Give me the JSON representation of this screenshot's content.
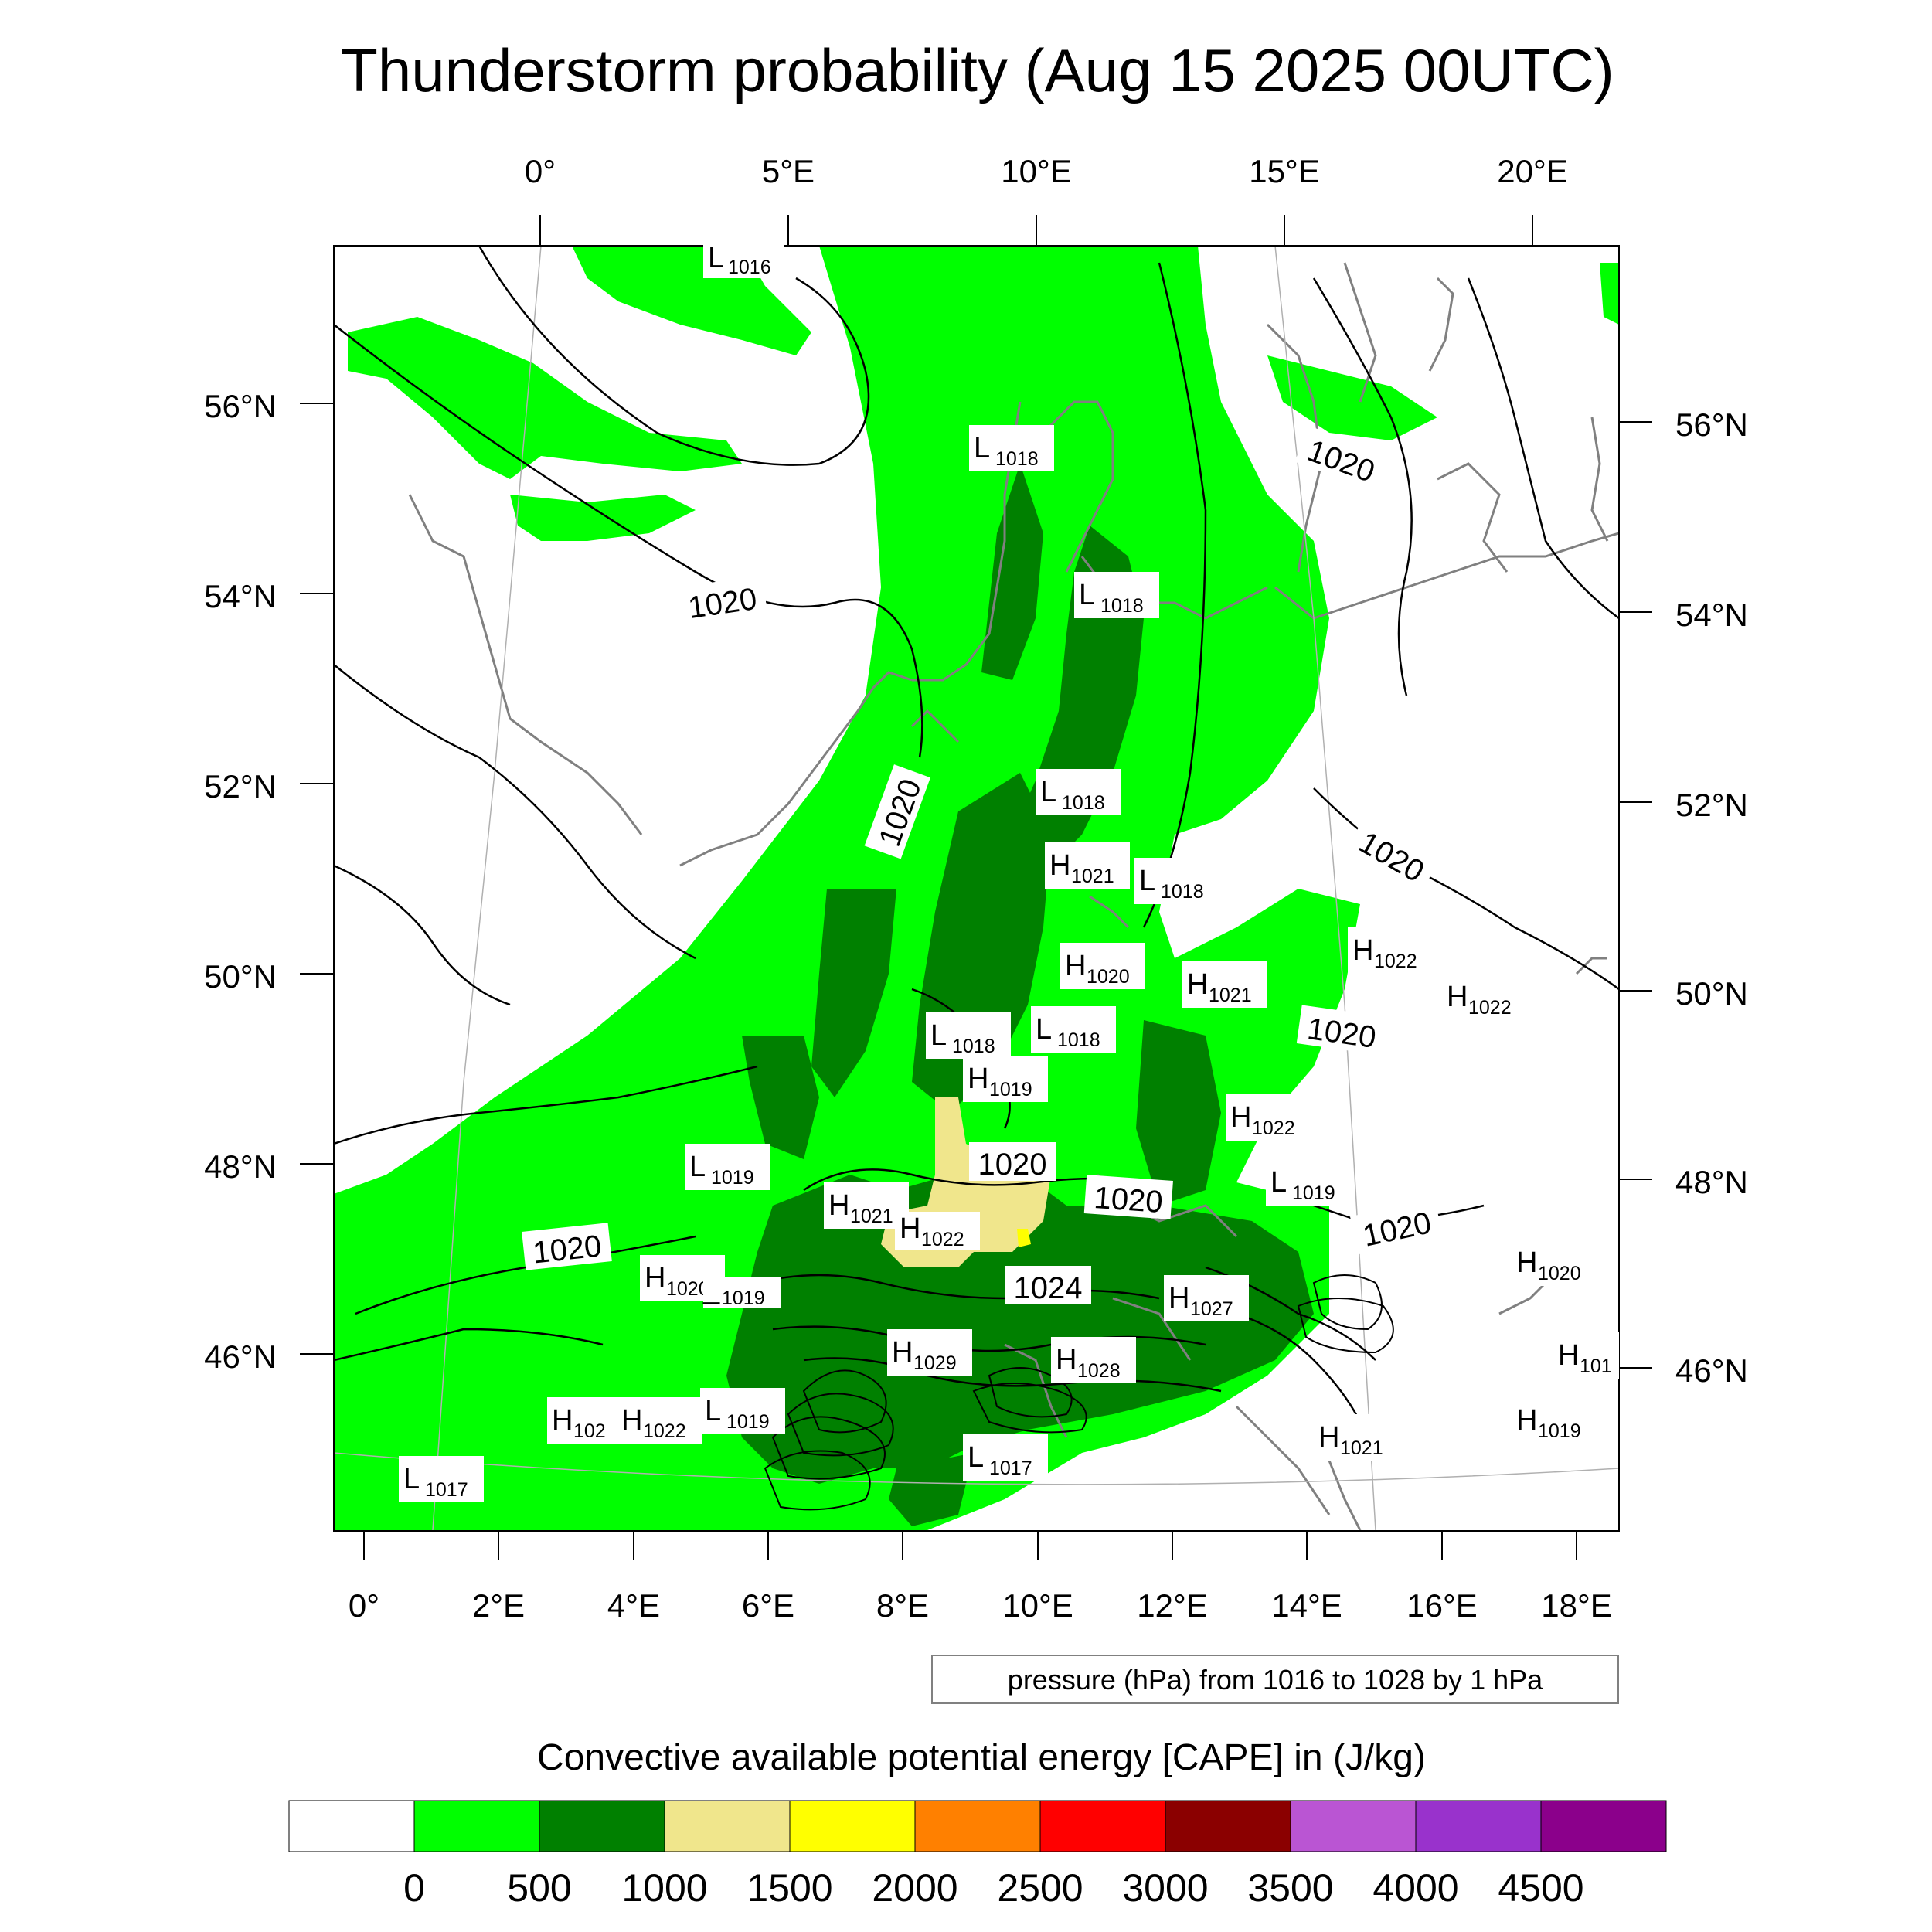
{
  "title": "Thunderstorm probability (Aug 15 2025 00UTC)",
  "lon_top": [
    "0°",
    "5°E",
    "10°E",
    "15°E",
    "20°E"
  ],
  "lon_bottom": [
    "0°",
    "2°E",
    "4°E",
    "6°E",
    "8°E",
    "10°E",
    "12°E",
    "14°E",
    "16°E",
    "18°E"
  ],
  "lat_left": [
    "56°N",
    "54°N",
    "52°N",
    "50°N",
    "48°N",
    "46°N"
  ],
  "lat_right": [
    "56°N",
    "54°N",
    "52°N",
    "50°N",
    "48°N",
    "46°N"
  ],
  "pressure_centers": [
    {
      "k": "L",
      "v": "1016"
    },
    {
      "k": "L",
      "v": "1018"
    },
    {
      "k": "L",
      "v": "1018"
    },
    {
      "k": "L",
      "v": "1018"
    },
    {
      "k": "H",
      "v": "1021"
    },
    {
      "k": "L",
      "v": "1018"
    },
    {
      "k": "H",
      "v": "1022"
    },
    {
      "k": "H",
      "v": "1022"
    },
    {
      "k": "H",
      "v": "1020"
    },
    {
      "k": "H",
      "v": "1021"
    },
    {
      "k": "L",
      "v": "1018"
    },
    {
      "k": "L",
      "v": "1018"
    },
    {
      "k": "H",
      "v": "1019"
    },
    {
      "k": "H",
      "v": "1022"
    },
    {
      "k": "L",
      "v": "1019"
    },
    {
      "k": "L",
      "v": "1019"
    },
    {
      "k": "H",
      "v": "1021"
    },
    {
      "k": "H",
      "v": "1022"
    },
    {
      "k": "H",
      "v": "1020"
    },
    {
      "k": "L",
      "v": "1019"
    },
    {
      "k": "H",
      "v": "1027"
    },
    {
      "k": "H",
      "v": "1020"
    },
    {
      "k": "H",
      "v": "1029"
    },
    {
      "k": "H",
      "v": "1028"
    },
    {
      "k": "H",
      "v": "101"
    },
    {
      "k": "L",
      "v": "1019"
    },
    {
      "k": "H",
      "v": "102"
    },
    {
      "k": "H",
      "v": "1022"
    },
    {
      "k": "L",
      "v": "1017"
    },
    {
      "k": "H",
      "v": "1021"
    },
    {
      "k": "H",
      "v": "1019"
    },
    {
      "k": "L",
      "v": "1017"
    }
  ],
  "contour_labels": [
    "1020",
    "1020",
    "1020",
    "1020",
    "1020",
    "1020",
    "1020",
    "1020",
    "1020",
    "1024"
  ],
  "contour_note": "pressure (hPa) from 1016 to 1028 by 1 hPa",
  "colorbar": {
    "title": "Convective available potential energy [CAPE] in (J/kg)",
    "labels": [
      "0",
      "500",
      "1000",
      "1500",
      "2000",
      "2500",
      "3000",
      "3500",
      "4000",
      "4500"
    ],
    "colors": [
      "#ffffff",
      "#00ff00",
      "#008000",
      "#f0e68c",
      "#ffff00",
      "#ff8000",
      "#ff0000",
      "#8b0000",
      "#ba55d3",
      "#9932cc",
      "#8b008b"
    ]
  }
}
